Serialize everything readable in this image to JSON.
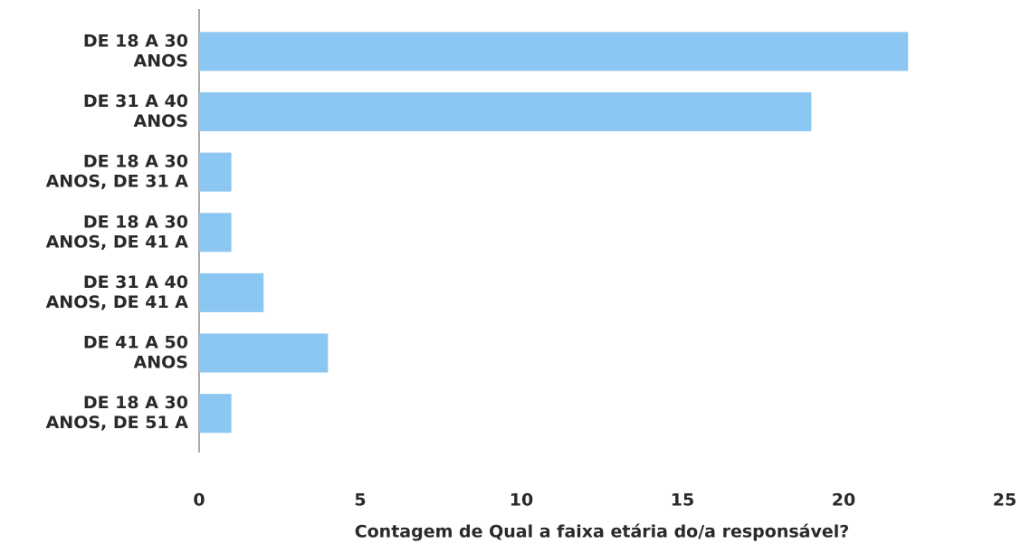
{
  "chart_data": {
    "type": "bar",
    "orientation": "horizontal",
    "x_label": "Contagem de Qual a faixa etária do/a responsável?",
    "categories": [
      [
        "DE 18 A 30",
        "ANOS"
      ],
      [
        "DE 31 A 40",
        "ANOS"
      ],
      [
        "DE 18 A 30",
        "ANOS, DE 31 A"
      ],
      [
        "DE 18 A 30",
        "ANOS, DE 41 A"
      ],
      [
        "DE 31 A 40",
        "ANOS, DE 41 A"
      ],
      [
        "DE 41 A 50",
        "ANOS"
      ],
      [
        "DE 18 A 30",
        "ANOS, DE 51 A"
      ]
    ],
    "values": [
      22,
      19,
      1,
      1,
      2,
      4,
      1
    ],
    "color": "#8cc6f2",
    "xlim": [
      0,
      25
    ],
    "xticks": [
      0,
      5,
      10,
      15,
      20,
      25
    ],
    "grid": false
  }
}
